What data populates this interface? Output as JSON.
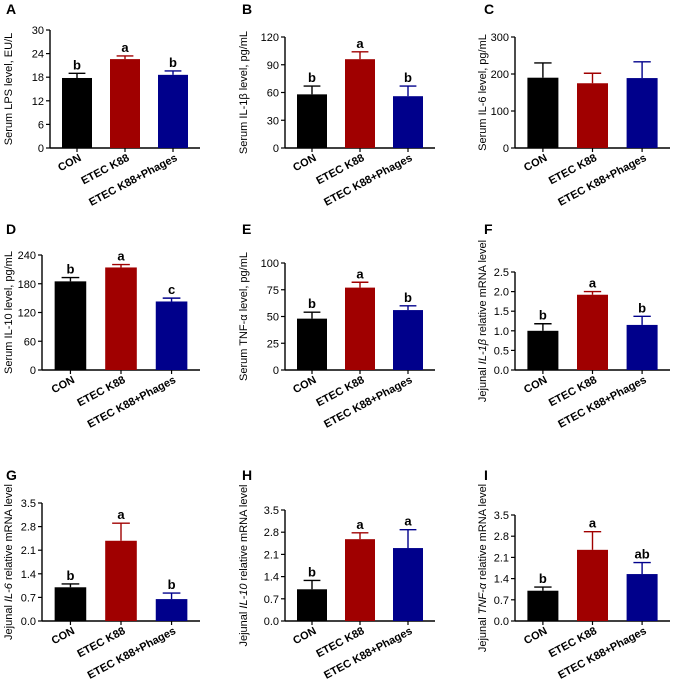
{
  "figure": {
    "colors": {
      "con": "#000000",
      "k88": "#a00000",
      "phages": "#00008b",
      "axis": "#000000"
    }
  },
  "chart_data": [
    {
      "type": "bar",
      "panel_label": "A",
      "title": "",
      "xlabel": "",
      "ylabel": "Serum LPS level, EU/L",
      "ylabel_parts": [
        {
          "t": "Serum LPS level, EU/L"
        }
      ],
      "ylim": [
        0,
        30
      ],
      "yticks": [
        "0",
        "6",
        "12",
        "18",
        "24",
        "30"
      ],
      "categories": [
        "CON",
        "ETEC K88",
        "ETEC K88+Phages"
      ],
      "values": [
        17.8,
        22.6,
        18.6
      ],
      "errors": [
        1.2,
        0.8,
        1.0
      ],
      "letters": [
        "b",
        "a",
        "b"
      ]
    },
    {
      "type": "bar",
      "panel_label": "B",
      "title": "",
      "xlabel": "",
      "ylabel": "Serum IL-1β level, pg/mL",
      "ylabel_parts": [
        {
          "t": "Serum IL-1β level, pg/mL"
        }
      ],
      "ylim": [
        0,
        120
      ],
      "yticks": [
        "0",
        "30",
        "60",
        "90",
        "120"
      ],
      "categories": [
        "CON",
        "ETEC K88",
        "ETEC K88+Phages"
      ],
      "values": [
        58,
        96,
        56
      ],
      "errors": [
        9,
        8,
        11
      ],
      "letters": [
        "b",
        "a",
        "b"
      ]
    },
    {
      "type": "bar",
      "panel_label": "C",
      "title": "",
      "xlabel": "",
      "ylabel": "Serum IL-6 level, pg/mL",
      "ylabel_parts": [
        {
          "t": "Serum IL-6 level, pg/mL"
        }
      ],
      "ylim": [
        0,
        300
      ],
      "yticks": [
        "0",
        "100",
        "200",
        "300"
      ],
      "categories": [
        "CON",
        "ETEC K88",
        "ETEC K88+Phages"
      ],
      "values": [
        190,
        175,
        189
      ],
      "errors": [
        40,
        27,
        44
      ],
      "letters": [
        "",
        "",
        ""
      ]
    },
    {
      "type": "bar",
      "panel_label": "D",
      "title": "",
      "xlabel": "",
      "ylabel": "Serum IL-10 level, pg/mL",
      "ylabel_parts": [
        {
          "t": "Serum IL-10 level, pg/mL"
        }
      ],
      "ylim": [
        0,
        240
      ],
      "yticks": [
        "0",
        "60",
        "120",
        "180",
        "240"
      ],
      "categories": [
        "CON",
        "ETEC K88",
        "ETEC K88+Phages"
      ],
      "values": [
        185,
        214,
        143
      ],
      "errors": [
        8,
        6,
        7
      ],
      "letters": [
        "b",
        "a",
        "c"
      ]
    },
    {
      "type": "bar",
      "panel_label": "E",
      "title": "",
      "xlabel": "",
      "ylabel": "Serum TNF-α level, pg/mL",
      "ylabel_parts": [
        {
          "t": "Serum TNF-α level, pg/mL"
        }
      ],
      "ylim": [
        0,
        100
      ],
      "yticks": [
        "0",
        "25",
        "50",
        "75",
        "100"
      ],
      "categories": [
        "CON",
        "ETEC K88",
        "ETEC K88+Phages"
      ],
      "values": [
        48,
        77,
        56
      ],
      "errors": [
        6,
        5,
        4
      ],
      "letters": [
        "b",
        "a",
        "b"
      ]
    },
    {
      "type": "bar",
      "panel_label": "F",
      "title": "",
      "xlabel": "",
      "ylabel": "Jejunal IL-1β relative mRNA level",
      "ylabel_parts": [
        {
          "t": "Jejunal "
        },
        {
          "t": "IL-1β",
          "i": true
        },
        {
          "t": " relative mRNA level"
        }
      ],
      "ylim": [
        0,
        2.5
      ],
      "yticks": [
        "0.0",
        "0.5",
        "1.0",
        "1.5",
        "2.0",
        "2.5"
      ],
      "categories": [
        "CON",
        "ETEC K88",
        "ETEC K88+Phages"
      ],
      "values": [
        1.0,
        1.92,
        1.15
      ],
      "errors": [
        0.18,
        0.08,
        0.22
      ],
      "letters": [
        "b",
        "a",
        "b"
      ]
    },
    {
      "type": "bar",
      "panel_label": "G",
      "title": "",
      "xlabel": "",
      "ylabel": "Jejunal IL-6 relative mRNA level",
      "ylabel_parts": [
        {
          "t": "Jejunal "
        },
        {
          "t": "IL-6",
          "i": true
        },
        {
          "t": " relative mRNA level"
        }
      ],
      "ylim": [
        0,
        3.5
      ],
      "yticks": [
        "0.0",
        "0.7",
        "1.4",
        "2.1",
        "2.8",
        "3.5"
      ],
      "categories": [
        "CON",
        "ETEC K88",
        "ETEC K88+Phages"
      ],
      "values": [
        1.0,
        2.38,
        0.65
      ],
      "errors": [
        0.1,
        0.52,
        0.18
      ],
      "letters": [
        "b",
        "a",
        "b"
      ]
    },
    {
      "type": "bar",
      "panel_label": "H",
      "title": "",
      "xlabel": "",
      "ylabel": "Jejunal IL-10 relative mRNA level",
      "ylabel_parts": [
        {
          "t": "Jejunal "
        },
        {
          "t": "IL-10",
          "i": true
        },
        {
          "t": " relative mRNA level"
        }
      ],
      "ylim": [
        0,
        3.5
      ],
      "yticks": [
        "0.0",
        "0.7",
        "1.4",
        "2.1",
        "2.8",
        "3.5"
      ],
      "categories": [
        "CON",
        "ETEC K88",
        "ETEC K88+Phages"
      ],
      "values": [
        1.0,
        2.58,
        2.3
      ],
      "errors": [
        0.28,
        0.2,
        0.58
      ],
      "letters": [
        "b",
        "a",
        "a"
      ]
    },
    {
      "type": "bar",
      "panel_label": "I",
      "title": "",
      "xlabel": "",
      "ylabel": "Jejunal TNF-α relative mRNA level",
      "ylabel_parts": [
        {
          "t": "Jejunal "
        },
        {
          "t": "TNF-α",
          "i": true
        },
        {
          "t": " relative mRNA level"
        }
      ],
      "ylim": [
        0,
        3.5
      ],
      "yticks": [
        "0.0",
        "0.7",
        "1.4",
        "2.1",
        "2.8",
        "3.5"
      ],
      "categories": [
        "CON",
        "ETEC K88",
        "ETEC K88+Phages"
      ],
      "values": [
        1.0,
        2.35,
        1.55
      ],
      "errors": [
        0.12,
        0.6,
        0.38
      ],
      "letters": [
        "b",
        "a",
        "ab"
      ]
    }
  ]
}
